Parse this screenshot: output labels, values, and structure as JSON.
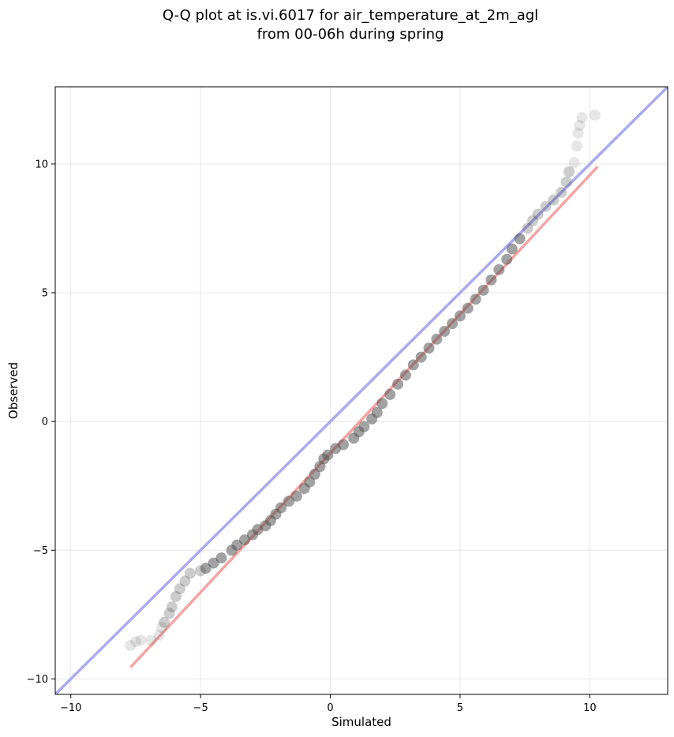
{
  "chart_data": {
    "type": "scatter",
    "title_line1": "Q-Q plot at is.vi.6017 for air_temperature_at_2m_agl",
    "title_line2": "from 00-06h during spring",
    "xlabel": "Simulated",
    "ylabel": "Observed",
    "xlim": [
      -10.6,
      13.0
    ],
    "ylim": [
      -10.6,
      13.0
    ],
    "xticks": [
      -10,
      -5,
      0,
      5,
      10
    ],
    "yticks": [
      -10,
      -5,
      0,
      5,
      10
    ],
    "xtick_labels": [
      "−10",
      "−5",
      "0",
      "5",
      "10"
    ],
    "ytick_labels": [
      "−10",
      "−5",
      "0",
      "5",
      "10"
    ],
    "grid": true,
    "reference_line": {
      "color": "#aaaaf0",
      "slope": 1,
      "intercept": 0
    },
    "fit_line": {
      "color": "#f5a3a3",
      "x": [
        -7.7,
        10.3
      ],
      "y": [
        -9.55,
        9.9
      ]
    },
    "points_color": "#555555",
    "quantiles": [
      {
        "x": -7.7,
        "y": -8.7
      },
      {
        "x": -7.5,
        "y": -8.55
      },
      {
        "x": -7.3,
        "y": -8.5
      },
      {
        "x": -6.9,
        "y": -8.5
      },
      {
        "x": -6.6,
        "y": -8.3
      },
      {
        "x": -6.5,
        "y": -8.0
      },
      {
        "x": -6.4,
        "y": -7.8
      },
      {
        "x": -6.2,
        "y": -7.45
      },
      {
        "x": -6.1,
        "y": -7.2
      },
      {
        "x": -5.95,
        "y": -6.8
      },
      {
        "x": -5.8,
        "y": -6.5
      },
      {
        "x": -5.6,
        "y": -6.2
      },
      {
        "x": -5.4,
        "y": -5.9
      },
      {
        "x": -5.0,
        "y": -5.8
      },
      {
        "x": -4.8,
        "y": -5.7
      },
      {
        "x": -4.5,
        "y": -5.5
      },
      {
        "x": -4.2,
        "y": -5.3
      },
      {
        "x": -3.8,
        "y": -5.0
      },
      {
        "x": -3.6,
        "y": -4.8
      },
      {
        "x": -3.3,
        "y": -4.6
      },
      {
        "x": -3.0,
        "y": -4.4
      },
      {
        "x": -2.8,
        "y": -4.2
      },
      {
        "x": -2.5,
        "y": -4.05
      },
      {
        "x": -2.3,
        "y": -3.85
      },
      {
        "x": -2.1,
        "y": -3.6
      },
      {
        "x": -1.9,
        "y": -3.35
      },
      {
        "x": -1.6,
        "y": -3.1
      },
      {
        "x": -1.3,
        "y": -2.9
      },
      {
        "x": -1.0,
        "y": -2.6
      },
      {
        "x": -0.8,
        "y": -2.35
      },
      {
        "x": -0.6,
        "y": -2.05
      },
      {
        "x": -0.4,
        "y": -1.75
      },
      {
        "x": -0.25,
        "y": -1.45
      },
      {
        "x": -0.1,
        "y": -1.3
      },
      {
        "x": 0.2,
        "y": -1.05
      },
      {
        "x": 0.5,
        "y": -0.9
      },
      {
        "x": 0.9,
        "y": -0.65
      },
      {
        "x": 1.1,
        "y": -0.4
      },
      {
        "x": 1.3,
        "y": -0.2
      },
      {
        "x": 1.6,
        "y": 0.1
      },
      {
        "x": 1.8,
        "y": 0.35
      },
      {
        "x": 2.0,
        "y": 0.7
      },
      {
        "x": 2.3,
        "y": 1.05
      },
      {
        "x": 2.6,
        "y": 1.45
      },
      {
        "x": 2.9,
        "y": 1.8
      },
      {
        "x": 3.2,
        "y": 2.2
      },
      {
        "x": 3.5,
        "y": 2.5
      },
      {
        "x": 3.8,
        "y": 2.85
      },
      {
        "x": 4.1,
        "y": 3.2
      },
      {
        "x": 4.4,
        "y": 3.5
      },
      {
        "x": 4.7,
        "y": 3.8
      },
      {
        "x": 5.0,
        "y": 4.1
      },
      {
        "x": 5.3,
        "y": 4.4
      },
      {
        "x": 5.6,
        "y": 4.75
      },
      {
        "x": 5.9,
        "y": 5.1
      },
      {
        "x": 6.2,
        "y": 5.5
      },
      {
        "x": 6.5,
        "y": 5.9
      },
      {
        "x": 6.8,
        "y": 6.3
      },
      {
        "x": 7.0,
        "y": 6.7
      },
      {
        "x": 7.3,
        "y": 7.1
      },
      {
        "x": 7.6,
        "y": 7.5
      },
      {
        "x": 7.8,
        "y": 7.8
      },
      {
        "x": 8.0,
        "y": 8.05
      },
      {
        "x": 8.3,
        "y": 8.35
      },
      {
        "x": 8.6,
        "y": 8.6
      },
      {
        "x": 8.9,
        "y": 8.9
      },
      {
        "x": 9.1,
        "y": 9.3
      },
      {
        "x": 9.2,
        "y": 9.7
      },
      {
        "x": 9.4,
        "y": 10.05
      },
      {
        "x": 9.5,
        "y": 10.7
      },
      {
        "x": 9.55,
        "y": 11.2
      },
      {
        "x": 9.6,
        "y": 11.5
      },
      {
        "x": 9.7,
        "y": 11.8
      },
      {
        "x": 10.2,
        "y": 11.9
      }
    ]
  }
}
